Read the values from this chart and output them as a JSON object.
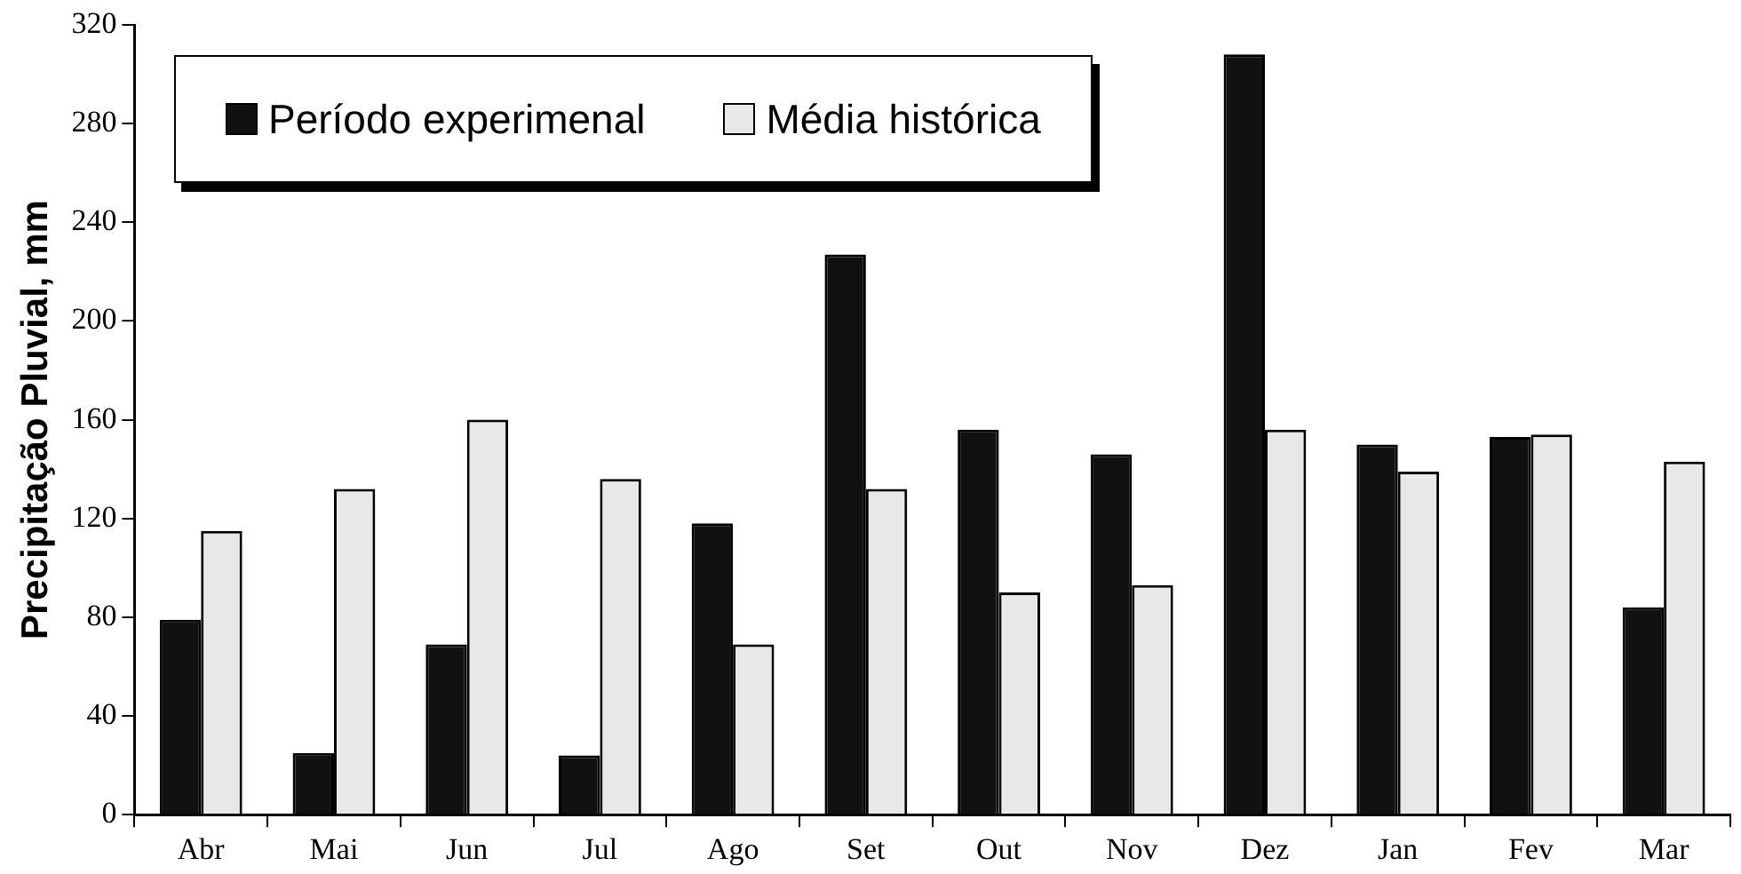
{
  "chart_data": {
    "type": "bar",
    "ylabel": "Precipitação Pluvial, mm",
    "categories": [
      "Abr",
      "Mai",
      "Jun",
      "Jul",
      "Ago",
      "Set",
      "Out",
      "Nov",
      "Dez",
      "Jan",
      "Fev",
      "Mar"
    ],
    "series": [
      {
        "name": "Período experimenal",
        "color": "#111111",
        "values": [
          79,
          25,
          69,
          24,
          118,
          227,
          156,
          146,
          308,
          150,
          153,
          84
        ]
      },
      {
        "name": "Média histórica",
        "color": "#e8e8e8",
        "values": [
          115,
          132,
          160,
          136,
          69,
          132,
          90,
          93,
          156,
          139,
          154,
          143
        ]
      }
    ],
    "ylim": [
      0,
      320
    ],
    "yticks": [
      0,
      40,
      80,
      120,
      160,
      200,
      240,
      280,
      320
    ],
    "grid": false,
    "legend": "top left"
  }
}
